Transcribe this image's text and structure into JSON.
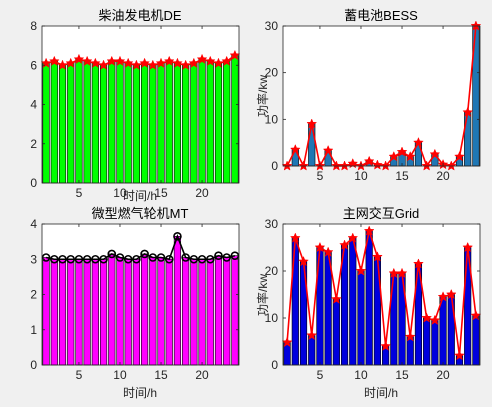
{
  "figure": {
    "background": "#f0f0f0"
  },
  "chart_data": [
    {
      "id": "de",
      "type": "bar",
      "title": "柴油发电机DE",
      "xlabel": "时间/h",
      "ylabel": "",
      "xlim": [
        0.5,
        24.5
      ],
      "ylim": [
        0,
        8
      ],
      "xticks": [
        5,
        10,
        15,
        20
      ],
      "yticks": [
        0,
        2,
        4,
        6,
        8
      ],
      "bar_color": "#00ff00",
      "line_color": "#ff0000",
      "marker": "star",
      "x": [
        1,
        2,
        3,
        4,
        5,
        6,
        7,
        8,
        9,
        10,
        11,
        12,
        13,
        14,
        15,
        16,
        17,
        18,
        19,
        20,
        21,
        22,
        23,
        24
      ],
      "values": [
        6.1,
        6.2,
        6.0,
        6.1,
        6.3,
        6.2,
        6.1,
        6.0,
        6.2,
        6.2,
        6.1,
        6.0,
        6.1,
        6.0,
        6.1,
        6.2,
        6.1,
        6.0,
        6.1,
        6.3,
        6.2,
        6.1,
        6.2,
        6.5
      ]
    },
    {
      "id": "bess",
      "type": "bar",
      "title": "蓄电池BESS",
      "xlabel": "",
      "ylabel": "功率/kw",
      "xlim": [
        0.5,
        24.5
      ],
      "ylim": [
        0,
        30
      ],
      "xticks": [
        5,
        10,
        15,
        20
      ],
      "yticks": [
        0,
        10,
        20,
        30
      ],
      "bar_color": "#1f77b4",
      "line_color": "#ff0000",
      "marker": "star",
      "x": [
        1,
        2,
        3,
        4,
        5,
        6,
        7,
        8,
        9,
        10,
        11,
        12,
        13,
        14,
        15,
        16,
        17,
        18,
        19,
        20,
        21,
        22,
        23,
        24
      ],
      "values": [
        0,
        3.5,
        0,
        9,
        0,
        3.3,
        0,
        0,
        0.5,
        0,
        1,
        0.2,
        0,
        2,
        3,
        2,
        5,
        0,
        2.5,
        0.3,
        0,
        2,
        11.5,
        30
      ]
    },
    {
      "id": "mt",
      "type": "bar",
      "title": "微型燃气轮机MT",
      "xlabel": "时间/h",
      "ylabel": "",
      "xlim": [
        0.5,
        24.5
      ],
      "ylim": [
        0,
        4
      ],
      "xticks": [
        5,
        10,
        15,
        20
      ],
      "yticks": [
        0,
        1,
        2,
        3,
        4
      ],
      "bar_color": "#ff00ff",
      "line_color": "#000000",
      "marker": "circle",
      "x": [
        1,
        2,
        3,
        4,
        5,
        6,
        7,
        8,
        9,
        10,
        11,
        12,
        13,
        14,
        15,
        16,
        17,
        18,
        19,
        20,
        21,
        22,
        23,
        24
      ],
      "values": [
        3.05,
        3.0,
        3.0,
        3.0,
        3.0,
        3.0,
        3.0,
        3.0,
        3.15,
        3.05,
        3.0,
        3.0,
        3.15,
        3.05,
        3.05,
        3.0,
        3.65,
        3.05,
        3.0,
        3.0,
        3.0,
        3.1,
        3.05,
        3.1
      ]
    },
    {
      "id": "grid",
      "type": "bar",
      "title": "主网交互Grid",
      "xlabel": "时间/h",
      "ylabel": "功率/kw",
      "xlim": [
        0.5,
        24.5
      ],
      "ylim": [
        0,
        30
      ],
      "xticks": [
        5,
        10,
        15,
        20
      ],
      "yticks": [
        0,
        10,
        20,
        30
      ],
      "bar_color": "#0000dd",
      "line_color": "#ff0000",
      "marker": "star",
      "x": [
        1,
        2,
        3,
        4,
        5,
        6,
        7,
        8,
        9,
        10,
        11,
        12,
        13,
        14,
        15,
        16,
        17,
        18,
        19,
        20,
        21,
        22,
        23,
        24
      ],
      "values": [
        4.8,
        27,
        22,
        6.3,
        25,
        24,
        14,
        25.5,
        27,
        20,
        28.5,
        23,
        4,
        19.5,
        19.5,
        6,
        21.5,
        10,
        9.5,
        14.5,
        15,
        2,
        25,
        10.5
      ]
    }
  ]
}
